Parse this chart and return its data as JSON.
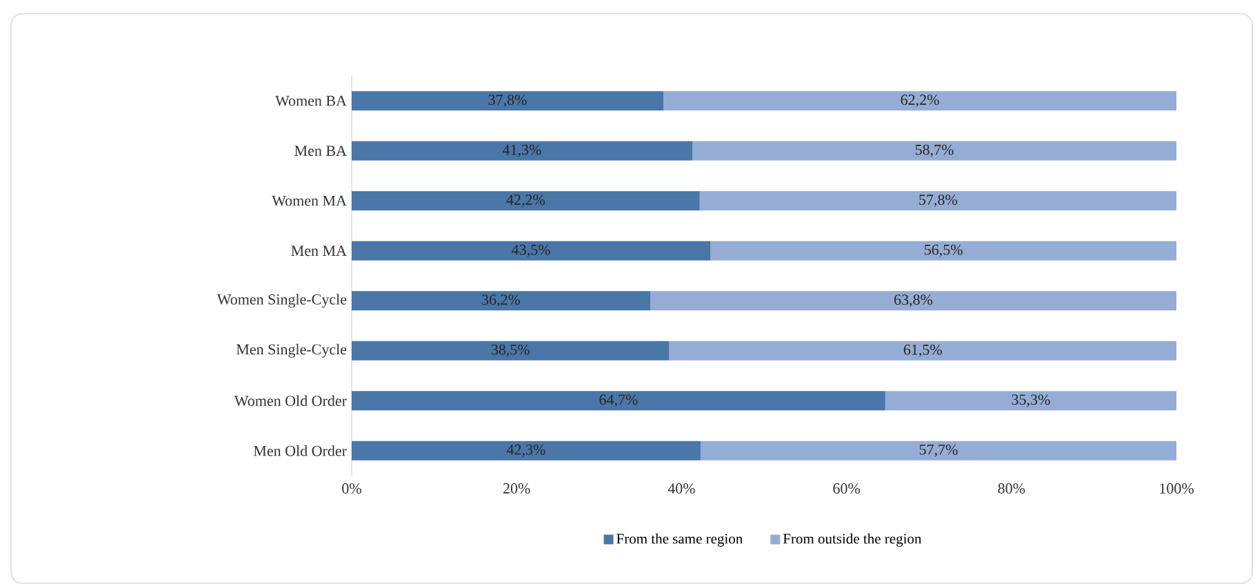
{
  "chart_data": {
    "type": "bar",
    "orientation": "horizontal",
    "stacked": true,
    "categories": [
      "Women BA",
      "Men BA",
      "Women MA",
      "Men MA",
      "Women Single-Cycle",
      "Men Single-Cycle",
      "Women Old Order",
      "Men Old Order"
    ],
    "series": [
      {
        "name": "From the same region",
        "color": "#4a76a8",
        "values": [
          37.8,
          41.3,
          42.2,
          43.5,
          36.2,
          38.5,
          64.7,
          42.3
        ],
        "value_labels": [
          "37,8%",
          "41,3%",
          "42,2%",
          "43,5%",
          "36,2%",
          "38,5%",
          "64,7%",
          "42,3%"
        ]
      },
      {
        "name": "From outside the region",
        "color": "#95acd4",
        "values": [
          62.2,
          58.7,
          57.8,
          56.5,
          63.8,
          61.5,
          35.3,
          57.7
        ],
        "value_labels": [
          "62,2%",
          "58,7%",
          "57,8%",
          "56,5%",
          "63,8%",
          "61,5%",
          "35,3%",
          "57,7%"
        ]
      }
    ],
    "xlim": [
      0,
      100
    ],
    "xticks": [
      {
        "value": 0,
        "label": "0%"
      },
      {
        "value": 20,
        "label": "20%"
      },
      {
        "value": 40,
        "label": "40%"
      },
      {
        "value": 60,
        "label": "60%"
      },
      {
        "value": 80,
        "label": "80%"
      },
      {
        "value": 100,
        "label": "100%"
      }
    ],
    "grid": false,
    "legend": "bottom"
  }
}
